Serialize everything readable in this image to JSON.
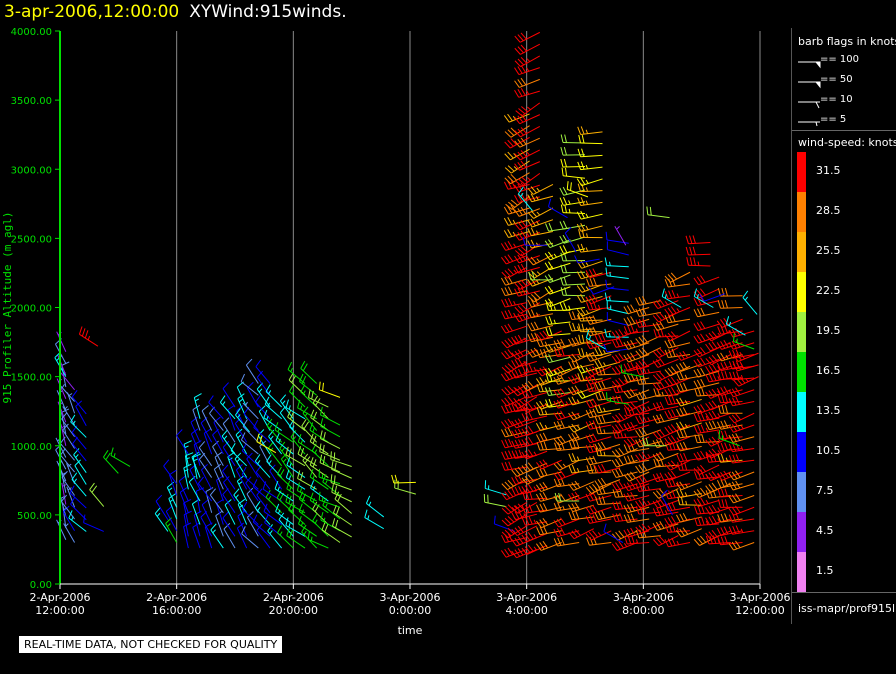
{
  "header": {
    "timestamp": "3-apr-2006,12:00:00",
    "product": "XYWind:915winds."
  },
  "qc_notice": "REAL-TIME DATA, NOT CHECKED FOR QUALITY",
  "legend": {
    "barb_title": "barb flags in knots",
    "barb_flags": [
      {
        "label": "== 100",
        "kind": "triangle"
      },
      {
        "label": "== 50",
        "kind": "triangle"
      },
      {
        "label": "== 10",
        "kind": "full"
      },
      {
        "label": "== 5",
        "kind": "half"
      }
    ],
    "speed_title": "wind-speed: knots",
    "bins": [
      {
        "label": "31.5",
        "color": "#ff0000"
      },
      {
        "label": "28.5",
        "color": "#ff8000"
      },
      {
        "label": "25.5",
        "color": "#ffb000"
      },
      {
        "label": "22.5",
        "color": "#ffff00"
      },
      {
        "label": "19.5",
        "color": "#a0f040"
      },
      {
        "label": "16.5",
        "color": "#00e000"
      },
      {
        "label": "13.5",
        "color": "#00ffff"
      },
      {
        "label": "10.5",
        "color": "#0000ff"
      },
      {
        "label": "7.5",
        "color": "#6090f0"
      },
      {
        "label": "4.5",
        "color": "#9020f0"
      },
      {
        "label": "1.5",
        "color": "#f080f0"
      }
    ],
    "source": "iss-mapr/prof915l"
  },
  "chart_data": {
    "type": "scatter",
    "xlabel": "time",
    "ylabel": "915 Profiler Altitude (m agl)",
    "ylim": [
      0,
      4000
    ],
    "xlim_hours": [
      0,
      24
    ],
    "yticks": [
      "0.00",
      "500.00",
      "1000.00",
      "1500.00",
      "2000.00",
      "2500.00",
      "3000.00",
      "3500.00",
      "4000.00"
    ],
    "xticks": [
      {
        "h": 0,
        "date": "2-Apr-2006",
        "time": "12:00:00"
      },
      {
        "h": 4,
        "date": "2-Apr-2006",
        "time": "16:00:00"
      },
      {
        "h": 8,
        "date": "2-Apr-2006",
        "time": "20:00:00"
      },
      {
        "h": 12,
        "date": "3-Apr-2006",
        "time": "0:00:00"
      },
      {
        "h": 16,
        "date": "3-Apr-2006",
        "time": "4:00:00"
      },
      {
        "h": 20,
        "date": "3-Apr-2006",
        "time": "8:00:00"
      },
      {
        "h": 24,
        "date": "3-Apr-2006",
        "time": "12:00:00"
      }
    ],
    "grid": "vertical",
    "columns": [
      {
        "h": 0.2,
        "ymin": 320,
        "ymax": 1700,
        "dir": 340,
        "spd": 6
      },
      {
        "h": 0.5,
        "ymin": 300,
        "ymax": 1450,
        "dir": 330,
        "spd": 7
      },
      {
        "h": 0.9,
        "ymin": 380,
        "ymax": 1250,
        "dir": 320,
        "spd": 12
      },
      {
        "h": 1.3,
        "ymin": 1720,
        "ymax": 1800,
        "dir": 300,
        "spd": 32
      },
      {
        "h": 1.5,
        "ymin": 380,
        "ymax": 420,
        "dir": 290,
        "spd": 12
      },
      {
        "h": 2.0,
        "ymin": 800,
        "ymax": 860,
        "dir": 320,
        "spd": 17
      },
      {
        "h": 3.7,
        "ymin": 380,
        "ymax": 500,
        "dir": 320,
        "spd": 11
      },
      {
        "h": 4.0,
        "ymin": 300,
        "ymax": 800,
        "dir": 330,
        "spd": 13
      },
      {
        "h": 4.4,
        "ymin": 260,
        "ymax": 1000,
        "dir": 340,
        "spd": 12
      },
      {
        "h": 4.8,
        "ymin": 260,
        "ymax": 1200,
        "dir": 340,
        "spd": 11
      },
      {
        "h": 5.2,
        "ymin": 260,
        "ymax": 1150,
        "dir": 335,
        "spd": 10
      },
      {
        "h": 5.6,
        "ymin": 260,
        "ymax": 1250,
        "dir": 330,
        "spd": 10
      },
      {
        "h": 6.0,
        "ymin": 260,
        "ymax": 1300,
        "dir": 330,
        "spd": 11
      },
      {
        "h": 6.4,
        "ymin": 260,
        "ymax": 1350,
        "dir": 325,
        "spd": 12
      },
      {
        "h": 6.8,
        "ymin": 260,
        "ymax": 1450,
        "dir": 320,
        "spd": 10
      },
      {
        "h": 7.2,
        "ymin": 260,
        "ymax": 1500,
        "dir": 320,
        "spd": 11
      },
      {
        "h": 7.6,
        "ymin": 260,
        "ymax": 1300,
        "dir": 315,
        "spd": 13
      },
      {
        "h": 8.0,
        "ymin": 260,
        "ymax": 1250,
        "dir": 315,
        "spd": 15
      },
      {
        "h": 8.4,
        "ymin": 260,
        "ymax": 1500,
        "dir": 310,
        "spd": 17
      },
      {
        "h": 8.8,
        "ymin": 260,
        "ymax": 1450,
        "dir": 310,
        "spd": 18
      },
      {
        "h": 9.2,
        "ymin": 260,
        "ymax": 1350,
        "dir": 305,
        "spd": 17
      },
      {
        "h": 9.6,
        "ymin": 300,
        "ymax": 1150,
        "dir": 300,
        "spd": 18
      },
      {
        "h": 10.0,
        "ymin": 340,
        "ymax": 900,
        "dir": 300,
        "spd": 19
      },
      {
        "h": 11.1,
        "ymin": 400,
        "ymax": 500,
        "dir": 300,
        "spd": 11
      },
      {
        "h": 12.2,
        "ymin": 650,
        "ymax": 800,
        "dir": 280,
        "spd": 21
      },
      {
        "h": 15.3,
        "ymin": 560,
        "ymax": 720,
        "dir": 290,
        "spd": 17
      },
      {
        "h": 15.6,
        "ymin": 380,
        "ymax": 460,
        "dir": 300,
        "spd": 11
      },
      {
        "h": 16.0,
        "ymin": 250,
        "ymax": 2500,
        "dir": 250,
        "spd": 32
      },
      {
        "h": 16.1,
        "ymin": 2550,
        "ymax": 3450,
        "dir": 245,
        "spd": 28
      },
      {
        "h": 16.35,
        "ymin": 250,
        "ymax": 1800,
        "dir": 250,
        "spd": 32
      },
      {
        "h": 16.45,
        "ymin": 1950,
        "ymax": 4000,
        "dir": 245,
        "spd": 32
      },
      {
        "h": 16.7,
        "ymin": 280,
        "ymax": 1600,
        "dir": 255,
        "spd": 31
      },
      {
        "h": 16.9,
        "ymin": 1700,
        "ymax": 2900,
        "dir": 250,
        "spd": 27
      },
      {
        "h": 17.2,
        "ymin": 300,
        "ymax": 1900,
        "dir": 255,
        "spd": 29
      },
      {
        "h": 17.5,
        "ymin": 1300,
        "ymax": 2600,
        "dir": 260,
        "spd": 22
      },
      {
        "h": 17.8,
        "ymin": 300,
        "ymax": 1800,
        "dir": 255,
        "spd": 30
      },
      {
        "h": 18.0,
        "ymin": 2000,
        "ymax": 3200,
        "dir": 265,
        "spd": 20
      },
      {
        "h": 18.3,
        "ymin": 400,
        "ymax": 2000,
        "dir": 255,
        "spd": 29
      },
      {
        "h": 18.6,
        "ymin": 1400,
        "ymax": 3300,
        "dir": 260,
        "spd": 24
      },
      {
        "h": 18.9,
        "ymin": 300,
        "ymax": 2300,
        "dir": 255,
        "spd": 31
      },
      {
        "h": 19.2,
        "ymin": 500,
        "ymax": 1800,
        "dir": 260,
        "spd": 28
      },
      {
        "h": 19.5,
        "ymin": 1700,
        "ymax": 2500,
        "dir": 275,
        "spd": 12
      },
      {
        "h": 19.8,
        "ymin": 300,
        "ymax": 1900,
        "dir": 255,
        "spd": 32
      },
      {
        "h": 20.2,
        "ymin": 300,
        "ymax": 2000,
        "dir": 255,
        "spd": 30
      },
      {
        "h": 20.6,
        "ymin": 350,
        "ymax": 2100,
        "dir": 255,
        "spd": 31
      },
      {
        "h": 20.9,
        "ymin": 2650,
        "ymax": 2700,
        "dir": 270,
        "spd": 18
      },
      {
        "h": 21.2,
        "ymin": 350,
        "ymax": 2100,
        "dir": 255,
        "spd": 30
      },
      {
        "h": 21.6,
        "ymin": 300,
        "ymax": 2300,
        "dir": 255,
        "spd": 32
      },
      {
        "h": 22.0,
        "ymin": 400,
        "ymax": 1700,
        "dir": 260,
        "spd": 29
      },
      {
        "h": 22.3,
        "ymin": 2300,
        "ymax": 2500,
        "dir": 260,
        "spd": 32
      },
      {
        "h": 22.6,
        "ymin": 350,
        "ymax": 2300,
        "dir": 255,
        "spd": 31
      },
      {
        "h": 23.0,
        "ymin": 300,
        "ymax": 1900,
        "dir": 255,
        "spd": 32
      },
      {
        "h": 23.4,
        "ymin": 300,
        "ymax": 2100,
        "dir": 260,
        "spd": 29
      },
      {
        "h": 23.8,
        "ymin": 300,
        "ymax": 1900,
        "dir": 255,
        "spd": 31
      },
      {
        "h": 23.95,
        "ymin": 1500,
        "ymax": 1700,
        "dir": 250,
        "spd": 32
      }
    ],
    "isolated": [
      {
        "h": 0.2,
        "y": 1500,
        "dir": 330,
        "spd": 13
      },
      {
        "h": 1.5,
        "y": 560,
        "dir": 320,
        "spd": 19
      },
      {
        "h": 2.4,
        "y": 850,
        "dir": 300,
        "spd": 17
      },
      {
        "h": 4.7,
        "y": 760,
        "dir": 350,
        "spd": 13
      },
      {
        "h": 6.5,
        "y": 1100,
        "dir": 320,
        "spd": 13
      },
      {
        "h": 7.4,
        "y": 950,
        "dir": 300,
        "spd": 22
      },
      {
        "h": 9.6,
        "y": 1350,
        "dir": 290,
        "spd": 22
      },
      {
        "h": 16.2,
        "y": 2700,
        "dir": 320,
        "spd": 13
      },
      {
        "h": 16.7,
        "y": 2450,
        "dir": 270,
        "spd": 11
      },
      {
        "h": 16.9,
        "y": 2200,
        "dir": 270,
        "spd": 19
      },
      {
        "h": 17.4,
        "y": 2650,
        "dir": 300,
        "spd": 10
      },
      {
        "h": 17.7,
        "y": 2400,
        "dir": 330,
        "spd": 10
      },
      {
        "h": 18.1,
        "y": 2800,
        "dir": 290,
        "spd": 22
      },
      {
        "h": 18.5,
        "y": 2350,
        "dir": 260,
        "spd": 10
      },
      {
        "h": 18.7,
        "y": 1700,
        "dir": 300,
        "spd": 13
      },
      {
        "h": 19.0,
        "y": 2150,
        "dir": 250,
        "spd": 10
      },
      {
        "h": 19.4,
        "y": 2450,
        "dir": 330,
        "spd": 4
      },
      {
        "h": 19.5,
        "y": 1300,
        "dir": 280,
        "spd": 17
      },
      {
        "h": 20.0,
        "y": 1500,
        "dir": 280,
        "spd": 17
      },
      {
        "h": 20.8,
        "y": 1000,
        "dir": 270,
        "spd": 19
      },
      {
        "h": 21.0,
        "y": 500,
        "dir": 330,
        "spd": 11
      },
      {
        "h": 21.3,
        "y": 2000,
        "dir": 300,
        "spd": 13
      },
      {
        "h": 22.4,
        "y": 2000,
        "dir": 300,
        "spd": 13
      },
      {
        "h": 22.8,
        "y": 2100,
        "dir": 250,
        "spd": 10
      },
      {
        "h": 23.3,
        "y": 1000,
        "dir": 290,
        "spd": 17
      },
      {
        "h": 23.5,
        "y": 1800,
        "dir": 300,
        "spd": 13
      },
      {
        "h": 23.8,
        "y": 1700,
        "dir": 290,
        "spd": 17
      },
      {
        "h": 23.9,
        "y": 1950,
        "dir": 320,
        "spd": 13
      },
      {
        "h": 17.8,
        "y": 600,
        "dir": 270,
        "spd": 19
      },
      {
        "h": 19.3,
        "y": 300,
        "dir": 300,
        "spd": 10
      }
    ]
  }
}
